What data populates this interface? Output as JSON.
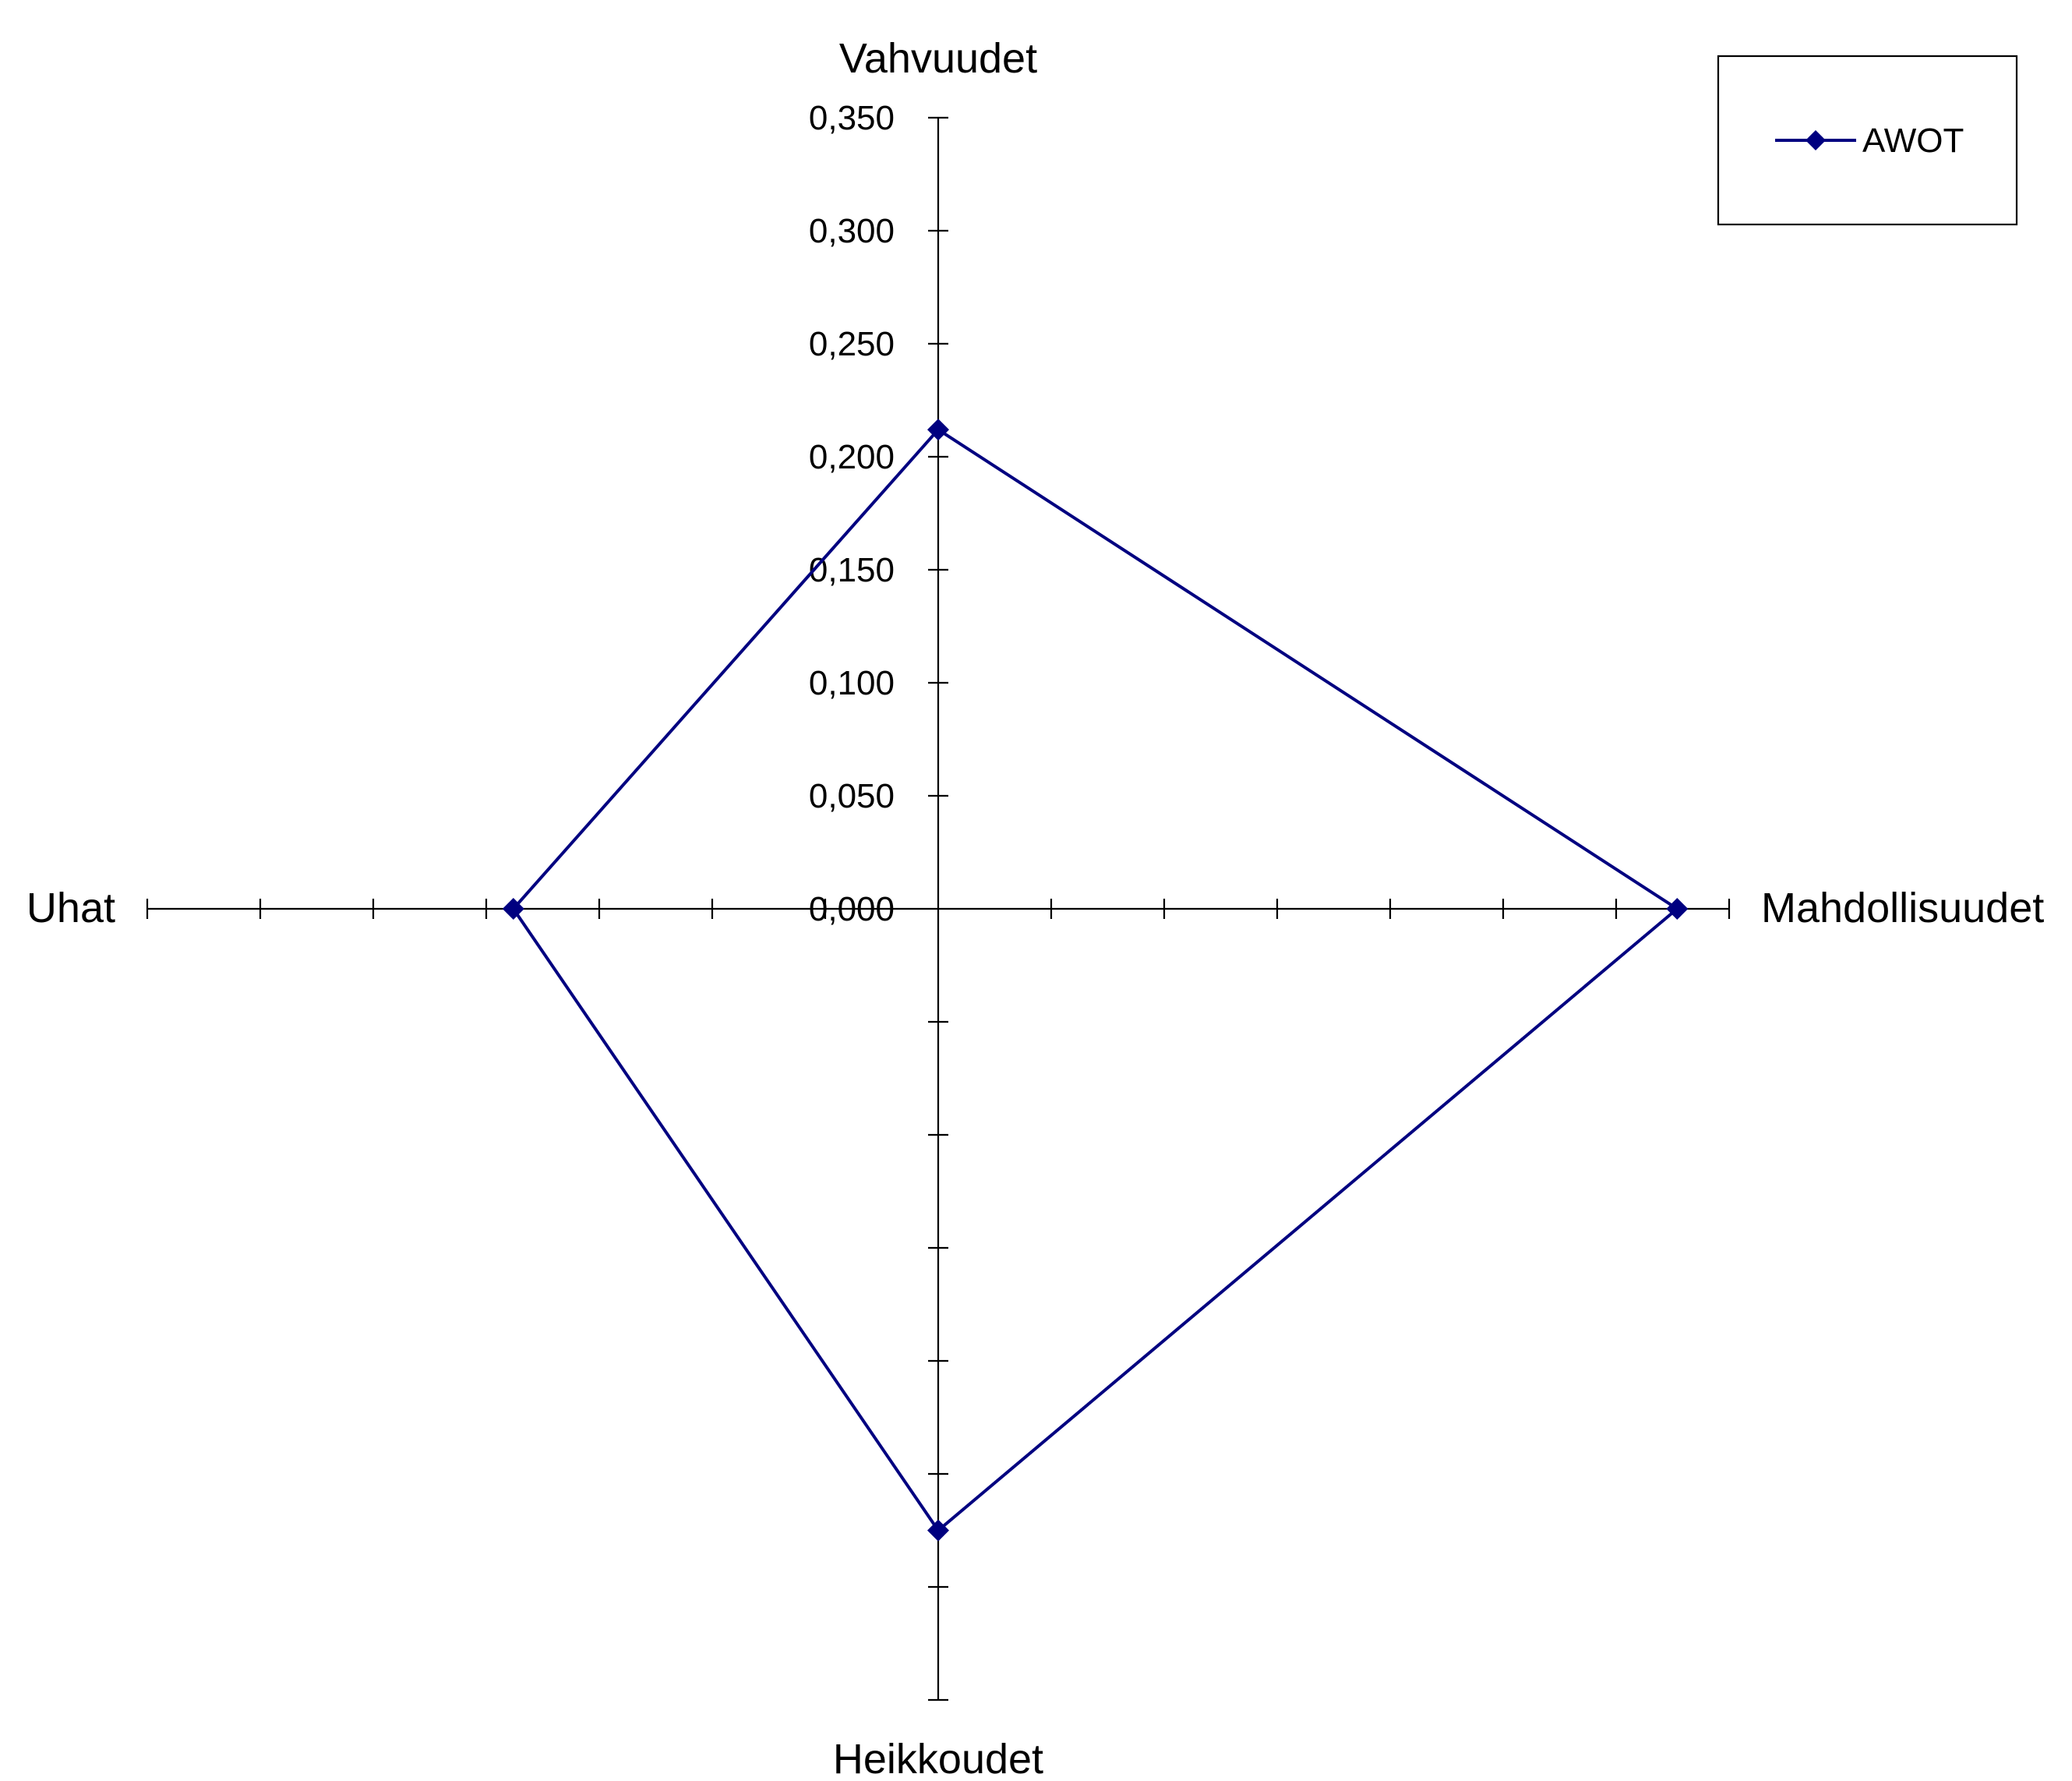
{
  "chart_data": {
    "type": "radar",
    "axes": [
      "Vahvuudet",
      "Mahdollisuudet",
      "Heikkoudet",
      "Uhat"
    ],
    "scale": {
      "min": 0.0,
      "max": 0.35,
      "step": 0.05,
      "tick_labels": [
        "0,000",
        "0,050",
        "0,100",
        "0,150",
        "0,200",
        "0,250",
        "0,300",
        "0,350"
      ]
    },
    "series": [
      {
        "name": "AWOT",
        "values": [
          0.212,
          0.327,
          0.275,
          0.188
        ],
        "color": "#000080",
        "marker": "diamond"
      }
    ],
    "legend_position": "top-right"
  }
}
